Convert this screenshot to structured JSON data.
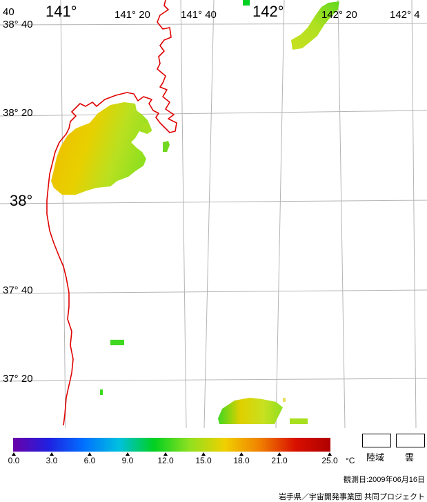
{
  "map": {
    "lon_labels": [
      {
        "text": "141°",
        "size": "big"
      },
      {
        "text": "141° 20",
        "size": "small"
      },
      {
        "text": "141° 40",
        "size": "small"
      },
      {
        "text": "142°",
        "size": "big"
      },
      {
        "text": "142° 20",
        "size": "small"
      },
      {
        "text": "142° 4",
        "size": "small"
      }
    ],
    "lat_labels": [
      {
        "text": "40",
        "size": "small"
      },
      {
        "text": "38° 40",
        "size": "small"
      },
      {
        "text": "38° 20",
        "size": "small"
      },
      {
        "text": "38°",
        "size": "big"
      },
      {
        "text": "37° 40",
        "size": "small"
      },
      {
        "text": "37° 20",
        "size": "small"
      }
    ],
    "coastline_color": "#e00000",
    "grid_color": "#b4b4b4"
  },
  "legend": {
    "ticks": [
      "0.0",
      "3.0",
      "6.0",
      "9.0",
      "12.0",
      "15.0",
      "18.0",
      "21.0",
      "25.0"
    ],
    "unit": "°C",
    "colors": [
      "#6a00a8",
      "#2020e0",
      "#0070ff",
      "#00c0e0",
      "#00d020",
      "#90e020",
      "#f0d000",
      "#f08000",
      "#d81000",
      "#b00000"
    ],
    "land_label": "陸域",
    "cloud_label": "雲"
  },
  "footer": {
    "observation_date": "観測日:2009年06月16日",
    "credit": "岩手県／宇宙開発事業団 共同プロジェクト"
  }
}
